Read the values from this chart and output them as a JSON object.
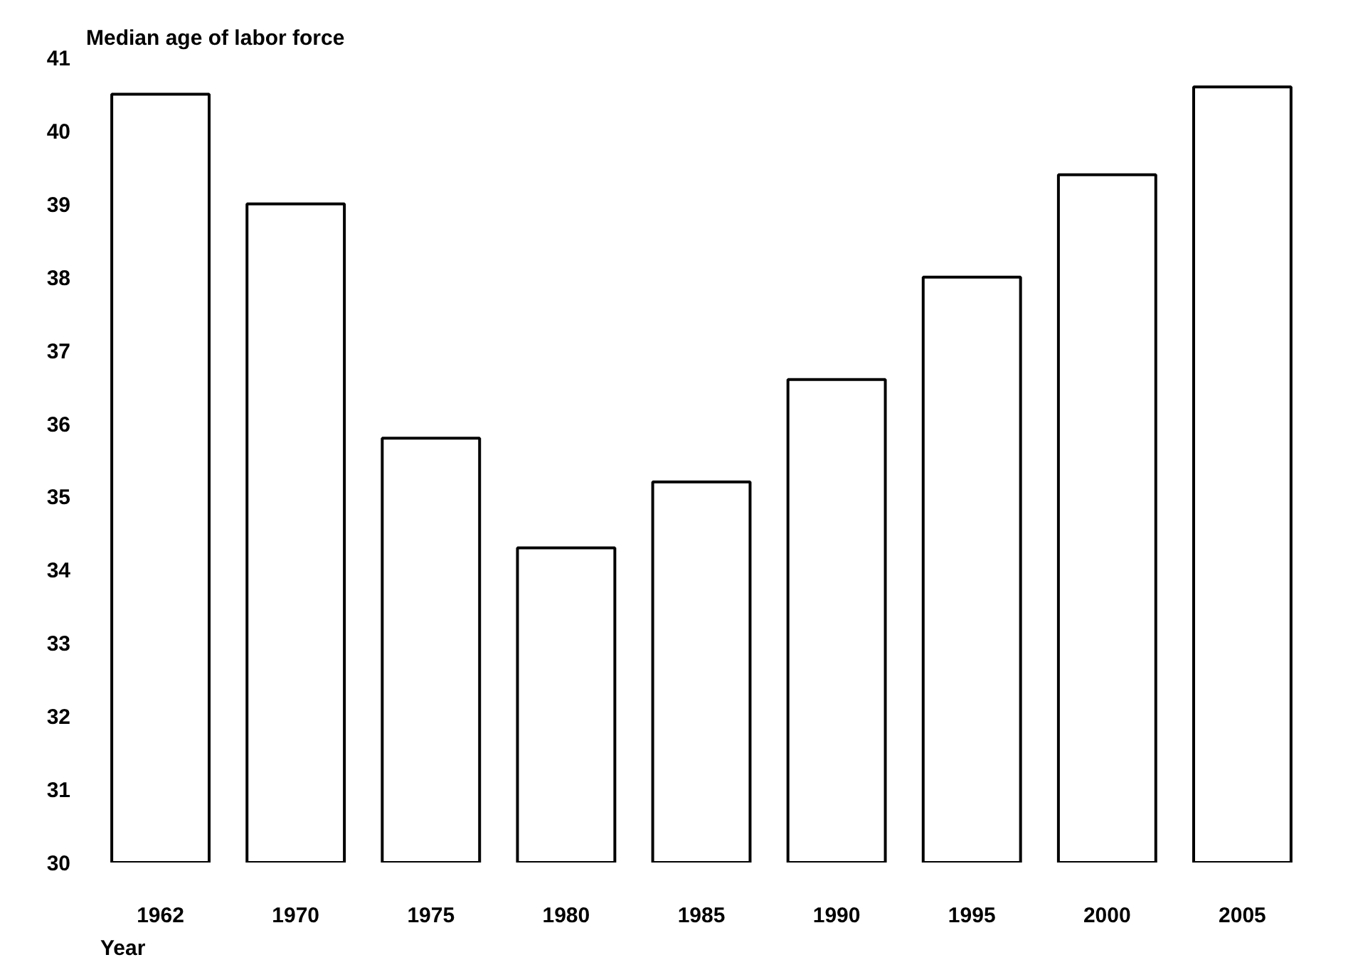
{
  "chart_data": {
    "type": "bar",
    "title": "Median age of labor force",
    "xlabel": "Year",
    "categories": [
      "1962",
      "1970",
      "1975",
      "1980",
      "1985",
      "1990",
      "1995",
      "2000",
      "2005"
    ],
    "values": [
      40.5,
      39.0,
      35.8,
      34.3,
      35.2,
      36.6,
      38.0,
      39.4,
      40.6
    ],
    "color": "#ffffff",
    "ylim": [
      30,
      41
    ],
    "yticks": [
      30,
      31,
      32,
      33,
      34,
      35,
      36,
      37,
      38,
      39,
      40,
      41
    ],
    "grid": false
  }
}
